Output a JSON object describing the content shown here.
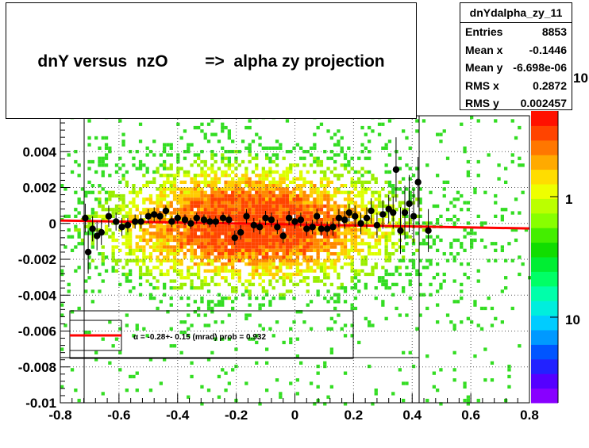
{
  "title": "dnY versus  nzO        =>  alpha zy projection",
  "stats": {
    "name": "dnYdalpha_zy_11",
    "rows": [
      {
        "label": "Entries",
        "value": "8853"
      },
      {
        "label": "Mean x",
        "value": "-0.1446"
      },
      {
        "label": "Mean y",
        "value": "-6.698e-06"
      },
      {
        "label": "RMS x",
        "value": "0.2872"
      },
      {
        "label": "RMS y",
        "value": "0.002457"
      }
    ]
  },
  "fit_label": "α =  -0.28+- 0.15 (mrad) prob = 0.932",
  "palette_labels": [
    "10",
    "1",
    "10"
  ],
  "chart_data": {
    "type": "scatter",
    "xlim": [
      -0.8,
      0.8
    ],
    "ylim": [
      -0.01,
      0.006
    ],
    "x_ticks": [
      "-0.8",
      "-0.6",
      "-0.4",
      "-0.2",
      "0",
      "0.2",
      "0.4",
      "0.6",
      "0.8"
    ],
    "y_ticks": [
      "-0.01",
      "-0.008",
      "-0.006",
      "-0.004",
      "-0.002",
      "0",
      "0.002",
      "0.004"
    ],
    "x_tick_values": [
      -0.8,
      -0.6,
      -0.4,
      -0.2,
      0,
      0.2,
      0.4,
      0.6,
      0.8
    ],
    "y_tick_values": [
      -0.01,
      -0.008,
      -0.006,
      -0.004,
      -0.002,
      0,
      0.002,
      0.004
    ],
    "grid": true,
    "fit_line": {
      "x": [
        -0.8,
        0.8
      ],
      "y": [
        0.00016,
        -0.00028
      ],
      "color": "#ff0000"
    },
    "profile_points": [
      {
        "x": -0.715,
        "y": 0.0003,
        "err": 0.0008
      },
      {
        "x": -0.705,
        "y": -0.0016,
        "err": 0.0012
      },
      {
        "x": -0.69,
        "y": -0.0003,
        "err": 0.0007
      },
      {
        "x": -0.675,
        "y": -0.0007,
        "err": 0.0008
      },
      {
        "x": -0.66,
        "y": -0.0005,
        "err": 0.0007
      },
      {
        "x": -0.635,
        "y": 0.0004,
        "err": 0.0006
      },
      {
        "x": -0.61,
        "y": 0.0001,
        "err": 0.0005
      },
      {
        "x": -0.59,
        "y": -0.0002,
        "err": 0.0005
      },
      {
        "x": -0.57,
        "y": -0.0001,
        "err": 0.0004
      },
      {
        "x": -0.545,
        "y": 0.0001,
        "err": 0.0004
      },
      {
        "x": -0.525,
        "y": 0.0001,
        "err": 0.0004
      },
      {
        "x": -0.5,
        "y": 0.0004,
        "err": 0.0004
      },
      {
        "x": -0.48,
        "y": 0.0005,
        "err": 0.0004
      },
      {
        "x": -0.46,
        "y": 0.0004,
        "err": 0.0003
      },
      {
        "x": -0.44,
        "y": 0.0007,
        "err": 0.0003
      },
      {
        "x": -0.42,
        "y": 0.0001,
        "err": 0.0003
      },
      {
        "x": -0.4,
        "y": 0.0003,
        "err": 0.0003
      },
      {
        "x": -0.375,
        "y": 0.0002,
        "err": 0.0003
      },
      {
        "x": -0.355,
        "y": 0.0,
        "err": 0.0003
      },
      {
        "x": -0.335,
        "y": 0.0003,
        "err": 0.0003
      },
      {
        "x": -0.31,
        "y": 0.0002,
        "err": 0.0003
      },
      {
        "x": -0.29,
        "y": 0.0001,
        "err": 0.0003
      },
      {
        "x": -0.27,
        "y": 0.0001,
        "err": 0.0003
      },
      {
        "x": -0.245,
        "y": 0.0003,
        "err": 0.0003
      },
      {
        "x": -0.225,
        "y": 0.0002,
        "err": 0.0003
      },
      {
        "x": -0.205,
        "y": -0.0008,
        "err": 0.0004
      },
      {
        "x": -0.185,
        "y": -0.0005,
        "err": 0.0004
      },
      {
        "x": -0.165,
        "y": 0.0004,
        "err": 0.0004
      },
      {
        "x": -0.14,
        "y": -0.0001,
        "err": 0.0004
      },
      {
        "x": -0.12,
        "y": -0.0002,
        "err": 0.0004
      },
      {
        "x": -0.1,
        "y": 0.0003,
        "err": 0.0004
      },
      {
        "x": -0.08,
        "y": 0.0002,
        "err": 0.0004
      },
      {
        "x": -0.06,
        "y": -0.0002,
        "err": 0.0004
      },
      {
        "x": -0.04,
        "y": -0.0007,
        "err": 0.0004
      },
      {
        "x": -0.02,
        "y": 0.0003,
        "err": 0.0004
      },
      {
        "x": 0.0,
        "y": 0.0001,
        "err": 0.0004
      },
      {
        "x": 0.02,
        "y": 0.0002,
        "err": 0.0004
      },
      {
        "x": 0.04,
        "y": -0.0003,
        "err": 0.0004
      },
      {
        "x": 0.06,
        "y": -0.0002,
        "err": 0.0004
      },
      {
        "x": 0.075,
        "y": 0.0004,
        "err": 0.0004
      },
      {
        "x": 0.09,
        "y": -0.0003,
        "err": 0.0004
      },
      {
        "x": 0.11,
        "y": -0.0003,
        "err": 0.0004
      },
      {
        "x": 0.13,
        "y": -0.0002,
        "err": 0.0005
      },
      {
        "x": 0.15,
        "y": 0.0003,
        "err": 0.0005
      },
      {
        "x": 0.17,
        "y": 0.0002,
        "err": 0.0005
      },
      {
        "x": 0.185,
        "y": 0.0006,
        "err": 0.0005
      },
      {
        "x": 0.205,
        "y": 0.0004,
        "err": 0.0006
      },
      {
        "x": 0.225,
        "y": 0.0,
        "err": 0.0006
      },
      {
        "x": 0.245,
        "y": 0.0003,
        "err": 0.0006
      },
      {
        "x": 0.26,
        "y": 0.0007,
        "err": 0.0007
      },
      {
        "x": 0.28,
        "y": -0.0001,
        "err": 0.0007
      },
      {
        "x": 0.3,
        "y": 0.0005,
        "err": 0.0008
      },
      {
        "x": 0.32,
        "y": 0.0008,
        "err": 0.0008
      },
      {
        "x": 0.335,
        "y": 0.0006,
        "err": 0.0009
      },
      {
        "x": 0.345,
        "y": 0.003,
        "err": 0.0018
      },
      {
        "x": 0.36,
        "y": -0.0004,
        "err": 0.0013
      },
      {
        "x": 0.375,
        "y": 0.0006,
        "err": 0.0015
      },
      {
        "x": 0.39,
        "y": 0.0011,
        "err": 0.0016
      },
      {
        "x": 0.405,
        "y": 0.0004,
        "err": 0.0015
      },
      {
        "x": 0.42,
        "y": 0.0023,
        "err": 0.0014
      },
      {
        "x": 0.455,
        "y": -0.0004,
        "err": 0.0012
      }
    ]
  }
}
